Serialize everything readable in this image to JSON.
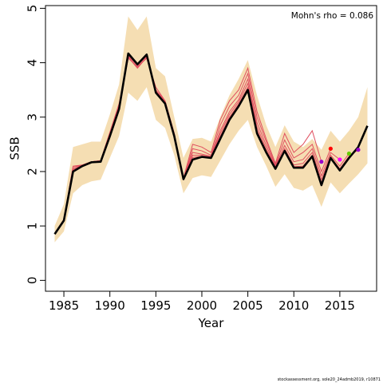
{
  "chart_data": {
    "type": "line",
    "xlabel": "Year",
    "ylabel": "SSB",
    "xlim": [
      1983,
      2019
    ],
    "ylim": [
      -0.2,
      5.05
    ],
    "x_ticks": [
      1985,
      1990,
      1995,
      2000,
      2005,
      2010,
      2015
    ],
    "y_ticks": [
      0,
      1,
      2,
      3,
      4,
      5
    ],
    "grid": false,
    "annotation": "Mohn's rho = 0.086",
    "colors": {
      "band": "#f5deb3",
      "final": "#000000",
      "retro": "#e05060",
      "dot_red": "#ff0000",
      "dot_magenta": "#ff00ff",
      "dot_green": "#66cc00",
      "dot_purple": "#9900cc"
    },
    "band": {
      "x": [
        1984,
        1985,
        1986,
        1987,
        1988,
        1989,
        1990,
        1991,
        1992,
        1993,
        1994,
        1995,
        1996,
        1997,
        1998,
        1999,
        2000,
        2001,
        2002,
        2003,
        2004,
        2005,
        2006,
        2007,
        2008,
        2009,
        2010,
        2011,
        2012,
        2013,
        2014,
        2015,
        2016,
        2017,
        2018
      ],
      "upper": [
        1.0,
        1.4,
        2.45,
        2.5,
        2.55,
        2.55,
        3.05,
        3.6,
        4.85,
        4.6,
        4.85,
        3.9,
        3.75,
        3.0,
        2.25,
        2.6,
        2.62,
        2.55,
        3.0,
        3.4,
        3.7,
        4.05,
        3.4,
        2.85,
        2.45,
        2.85,
        2.55,
        2.45,
        2.6,
        2.4,
        2.75,
        2.55,
        2.75,
        3.0,
        3.55
      ],
      "lower": [
        0.7,
        0.9,
        1.6,
        1.75,
        1.82,
        1.85,
        2.25,
        2.65,
        3.45,
        3.3,
        3.55,
        2.95,
        2.8,
        2.3,
        1.6,
        1.88,
        1.93,
        1.9,
        2.2,
        2.5,
        2.75,
        2.95,
        2.45,
        2.1,
        1.72,
        1.95,
        1.7,
        1.65,
        1.75,
        1.35,
        1.8,
        1.6,
        1.78,
        1.95,
        2.15
      ]
    },
    "series": [
      {
        "x": [
          1984,
          1985,
          1986,
          1987,
          1988,
          1989,
          1990,
          1991,
          1992,
          1993,
          1994,
          1995,
          1996,
          1997,
          1998,
          1999,
          2000,
          2001,
          2002,
          2003,
          2004,
          2005,
          2006,
          2007,
          2008,
          2009,
          2010,
          2011,
          2012,
          2013,
          2014,
          2015,
          2016,
          2017,
          2018
        ],
        "values": [
          0.85,
          1.1,
          2.0,
          2.1,
          2.17,
          2.18,
          2.65,
          3.15,
          4.17,
          3.97,
          4.15,
          3.45,
          3.25,
          2.65,
          1.86,
          2.22,
          2.27,
          2.25,
          2.6,
          2.95,
          3.2,
          3.5,
          2.7,
          2.35,
          2.05,
          2.38,
          2.07,
          2.07,
          2.28,
          1.75,
          2.25,
          2.02,
          2.25,
          2.45,
          2.84
        ]
      },
      {
        "x": [
          1984,
          1985,
          1986,
          1987,
          1988,
          1989,
          1990,
          1991,
          1992,
          1993,
          1994,
          1995,
          1996,
          1997,
          1998,
          1999,
          2000,
          2001,
          2002,
          2003,
          2004,
          2005,
          2006,
          2007,
          2008,
          2009,
          2010,
          2011,
          2012,
          2013
        ],
        "values": [
          0.86,
          1.12,
          2.05,
          2.12,
          2.18,
          2.2,
          2.72,
          3.25,
          4.08,
          3.93,
          4.08,
          3.55,
          3.3,
          2.7,
          1.88,
          2.5,
          2.45,
          2.35,
          2.95,
          3.3,
          3.5,
          3.9,
          3.1,
          2.6,
          2.15,
          2.7,
          2.35,
          2.5,
          2.75,
          2.18
        ]
      },
      {
        "x": [
          1984,
          1985,
          1986,
          1987,
          1988,
          1989,
          1990,
          1991,
          1992,
          1993,
          1994,
          1995,
          1996,
          1997,
          1998,
          1999,
          2000,
          2001,
          2002,
          2003,
          2004,
          2005,
          2006,
          2007,
          2008,
          2009,
          2010,
          2011,
          2012,
          2013,
          2014
        ],
        "values": [
          0.86,
          1.12,
          2.08,
          2.12,
          2.18,
          2.2,
          2.7,
          3.2,
          4.1,
          3.9,
          4.1,
          3.5,
          3.3,
          2.7,
          1.87,
          2.42,
          2.38,
          2.3,
          2.85,
          3.2,
          3.4,
          3.8,
          3.0,
          2.55,
          2.12,
          2.58,
          2.25,
          2.35,
          2.5,
          2.0,
          2.42
        ]
      },
      {
        "x": [
          1984,
          1985,
          1986,
          1987,
          1988,
          1989,
          1990,
          1991,
          1992,
          1993,
          1994,
          1995,
          1996,
          1997,
          1998,
          1999,
          2000,
          2001,
          2002,
          2003,
          2004,
          2005,
          2006,
          2007,
          2008,
          2009,
          2010,
          2011,
          2012,
          2013,
          2014,
          2015
        ],
        "values": [
          0.86,
          1.12,
          2.1,
          2.12,
          2.18,
          2.2,
          2.72,
          3.22,
          4.12,
          3.95,
          4.12,
          3.48,
          3.28,
          2.68,
          1.87,
          2.35,
          2.32,
          2.28,
          2.75,
          3.1,
          3.32,
          3.7,
          2.9,
          2.48,
          2.1,
          2.48,
          2.18,
          2.22,
          2.42,
          1.92,
          2.35,
          2.22
        ]
      },
      {
        "x": [
          1984,
          1985,
          1986,
          1987,
          1988,
          1989,
          1990,
          1991,
          1992,
          1993,
          1994,
          1995,
          1996,
          1997,
          1998,
          1999,
          2000,
          2001,
          2002,
          2003,
          2004,
          2005,
          2006,
          2007,
          2008,
          2009,
          2010,
          2011,
          2012,
          2013,
          2014,
          2015,
          2016
        ],
        "values": [
          0.86,
          1.12,
          2.04,
          2.12,
          2.18,
          2.2,
          2.7,
          3.2,
          4.1,
          3.92,
          4.1,
          3.48,
          3.28,
          2.68,
          1.87,
          2.3,
          2.3,
          2.27,
          2.7,
          3.05,
          3.28,
          3.62,
          2.82,
          2.42,
          2.08,
          2.42,
          2.12,
          2.15,
          2.35,
          1.85,
          2.3,
          2.1,
          2.33
        ]
      },
      {
        "x": [
          1984,
          1985,
          1986,
          1987,
          1988,
          1989,
          1990,
          1991,
          1992,
          1993,
          1994,
          1995,
          1996,
          1997,
          1998,
          1999,
          2000,
          2001,
          2002,
          2003,
          2004,
          2005,
          2006,
          2007,
          2008,
          2009,
          2010,
          2011,
          2012,
          2013,
          2014,
          2015,
          2016,
          2017
        ],
        "values": [
          0.86,
          1.11,
          2.02,
          2.11,
          2.17,
          2.19,
          2.68,
          3.18,
          4.14,
          3.95,
          4.13,
          3.46,
          3.26,
          2.66,
          1.86,
          2.26,
          2.28,
          2.26,
          2.65,
          3.0,
          3.24,
          3.55,
          2.76,
          2.38,
          2.06,
          2.4,
          2.09,
          2.1,
          2.3,
          1.79,
          2.27,
          2.05,
          2.28,
          2.4
        ]
      }
    ],
    "terminal_points": [
      {
        "x": 2013,
        "value": 2.18,
        "color": "#9900cc"
      },
      {
        "x": 2014,
        "value": 2.42,
        "color": "#ff0000"
      },
      {
        "x": 2015,
        "value": 2.22,
        "color": "#ff00ff"
      },
      {
        "x": 2016,
        "value": 2.33,
        "color": "#66cc00"
      },
      {
        "x": 2017,
        "value": 2.4,
        "color": "#9900cc"
      }
    ]
  },
  "footer": "stockassessment.org, sole20_24admb2019, r10871"
}
